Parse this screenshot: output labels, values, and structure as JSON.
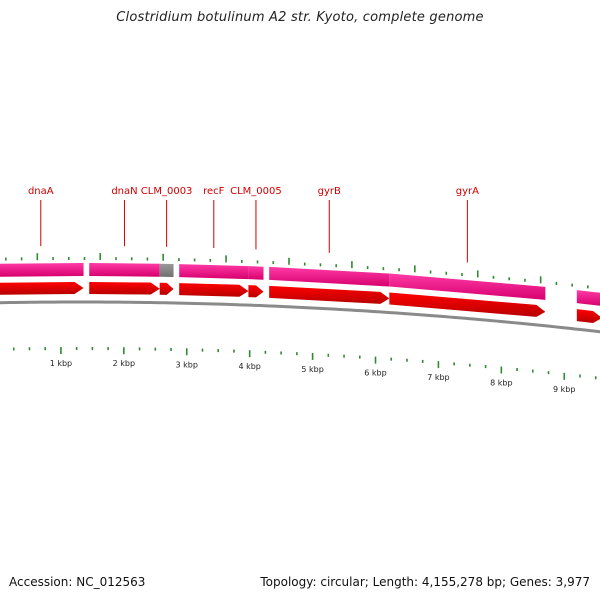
{
  "title": "Clostridium botulinum A2 str. Kyoto, complete genome",
  "footer": {
    "accession": "Accession: NC_012563",
    "summary": "Topology: circular; Length: 4,155,278 bp; Genes: 3,977"
  },
  "colors": {
    "gene_bar": "#ff3aa6",
    "gene_bar_dark": "#d6006e",
    "cds_arrow": "#ff0000",
    "cds_arrow_dark": "#b80000",
    "unknown_gene": "#707070",
    "backbone": "#8a8a8a",
    "tick": "#2e8b2e",
    "label": "#d10000"
  },
  "genome": {
    "view_start_bp": 0,
    "view_end_bp": 9600
  },
  "genes": [
    {
      "name": "dnaA",
      "start": 0,
      "end": 1360,
      "label": "dnaA",
      "type": "known"
    },
    {
      "name": "dnaN",
      "start": 1450,
      "end": 2570,
      "label": "dnaN",
      "type": "known"
    },
    {
      "name": "CLM_0003",
      "start": 2570,
      "end": 2790,
      "label": "CLM_0003",
      "type": "unknown"
    },
    {
      "name": "recF",
      "start": 2880,
      "end": 3980,
      "label": "recF",
      "type": "known"
    },
    {
      "name": "CLM_0005",
      "start": 3980,
      "end": 4220,
      "label": "CLM_0005",
      "type": "known"
    },
    {
      "name": "gyrB",
      "start": 4310,
      "end": 6220,
      "label": "gyrB",
      "type": "known"
    },
    {
      "name": "gyrA",
      "start": 6220,
      "end": 8700,
      "label": "gyrA",
      "type": "known"
    },
    {
      "name": "next",
      "start": 9200,
      "end": 9600,
      "label": "",
      "type": "known"
    }
  ],
  "kbp_ticks": [
    {
      "bp": 1000,
      "label": "1 kbp"
    },
    {
      "bp": 2000,
      "label": "2 kbp"
    },
    {
      "bp": 3000,
      "label": "3 kbp"
    },
    {
      "bp": 4000,
      "label": "4 kbp"
    },
    {
      "bp": 5000,
      "label": "5 kbp"
    },
    {
      "bp": 6000,
      "label": "6 kbp"
    },
    {
      "bp": 7000,
      "label": "7 kbp"
    },
    {
      "bp": 8000,
      "label": "8 kbp"
    },
    {
      "bp": 9000,
      "label": "9 kbp"
    }
  ]
}
